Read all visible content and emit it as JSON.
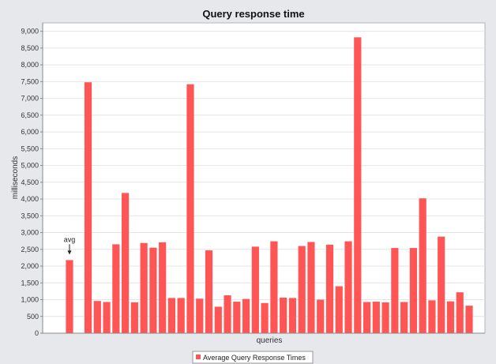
{
  "chart_data": {
    "type": "bar",
    "title": "Query response time",
    "xlabel": "queries",
    "ylabel": "milliseconds",
    "ylim": [
      0,
      9250
    ],
    "yticks": [
      0,
      500,
      1000,
      1500,
      2000,
      2500,
      3000,
      3500,
      4000,
      4500,
      5000,
      5500,
      6000,
      6500,
      7000,
      7500,
      8000,
      8500,
      9000
    ],
    "ytick_labels": [
      "0",
      "500",
      "1,000",
      "1,500",
      "2,000",
      "2,500",
      "3,000",
      "3,500",
      "4,000",
      "4,500",
      "5,000",
      "5,500",
      "6,000",
      "6,500",
      "7,000",
      "7,500",
      "8,000",
      "8,500",
      "9,000"
    ],
    "grid": true,
    "legend_position": "bottom-center",
    "series": [
      {
        "name": "Average Query Response Times",
        "color": "#ff5555",
        "values": [
          2180,
          null,
          7480,
          960,
          930,
          2650,
          4180,
          920,
          2690,
          2550,
          2710,
          1050,
          1050,
          7420,
          1030,
          2470,
          790,
          1130,
          940,
          1020,
          2580,
          900,
          2740,
          1060,
          1050,
          2600,
          2720,
          1000,
          2640,
          1400,
          2740,
          8820,
          930,
          940,
          920,
          2540,
          930,
          2540,
          4020,
          980,
          2880,
          950,
          1220,
          820
        ]
      }
    ],
    "annotations": [
      {
        "text": "avg",
        "bar_index": 0
      }
    ]
  }
}
